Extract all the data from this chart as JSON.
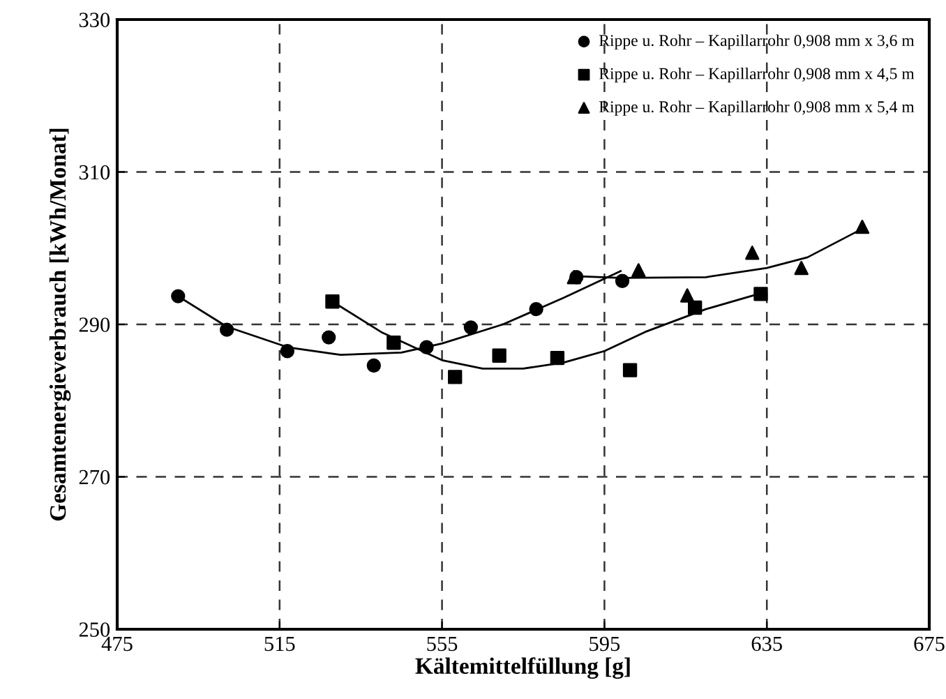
{
  "chart_data": {
    "type": "scatter",
    "xlabel": "Kältemittelfüllung [g]",
    "ylabel": "Gesamtenergieverbrauch [kWh/Monat]",
    "xlim": [
      475,
      675
    ],
    "xticks": [
      475,
      515,
      555,
      595,
      635,
      675
    ],
    "ylim": [
      250,
      330
    ],
    "yticks": [
      250,
      270,
      290,
      310,
      330
    ],
    "grid": true,
    "legend": "top right",
    "series": [
      {
        "name": "Rippe u. Rohr – Kapillarrohr 0,908 mm x 3,6 m",
        "color": "#000000",
        "marker": "circle",
        "x": [
          490.0,
          502.0,
          516.9,
          527.1,
          538.2,
          551.2,
          562.1,
          578.2,
          588.1,
          599.4
        ],
        "values": [
          293.7,
          289.3,
          286.5,
          288.3,
          284.6,
          287.0,
          289.6,
          292.0,
          296.2,
          295.7
        ]
      },
      {
        "name": "Rippe u. Rohr – Kapillarrohr 0,908 mm x 4,5 m",
        "color": "#000000",
        "marker": "square",
        "x": [
          528.0,
          543.1,
          558.2,
          569.1,
          583.4,
          601.3,
          617.3,
          633.5
        ],
        "values": [
          293.0,
          287.6,
          283.1,
          285.9,
          285.6,
          284.0,
          292.2,
          294.0
        ]
      },
      {
        "name": "Rippe u. Rohr – Kapillarrohr 0,908 mm x 5,4 m",
        "color": "#000000",
        "marker": "triangle",
        "x": [
          587.5,
          603.4,
          615.4,
          631.4,
          643.5,
          658.5
        ],
        "values": [
          296.2,
          297.1,
          293.8,
          299.4,
          297.4,
          302.8
        ]
      },
      {
        "type": "line",
        "color": "#000000",
        "marker": "none",
        "line_style": "solid",
        "x": [
          490,
          502,
          517,
          530,
          545,
          555,
          570,
          585,
          599
        ],
        "values": [
          293.7,
          289.7,
          287.0,
          286.0,
          286.3,
          287.5,
          290.0,
          293.5,
          297.0
        ]
      },
      {
        "type": "line",
        "color": "#000000",
        "marker": "none",
        "line_style": "solid",
        "x": [
          528,
          540,
          555,
          565,
          575,
          585,
          595,
          605,
          620,
          633
        ],
        "values": [
          293.0,
          289.0,
          285.3,
          284.2,
          284.2,
          285.0,
          286.5,
          289.0,
          292.0,
          294.0
        ]
      },
      {
        "type": "line",
        "color": "#000000",
        "marker": "none",
        "line_style": "solid",
        "x": [
          589,
          599,
          620,
          635,
          645,
          658
        ],
        "values": [
          296.3,
          296.1,
          296.2,
          297.4,
          298.8,
          302.4
        ]
      }
    ]
  }
}
